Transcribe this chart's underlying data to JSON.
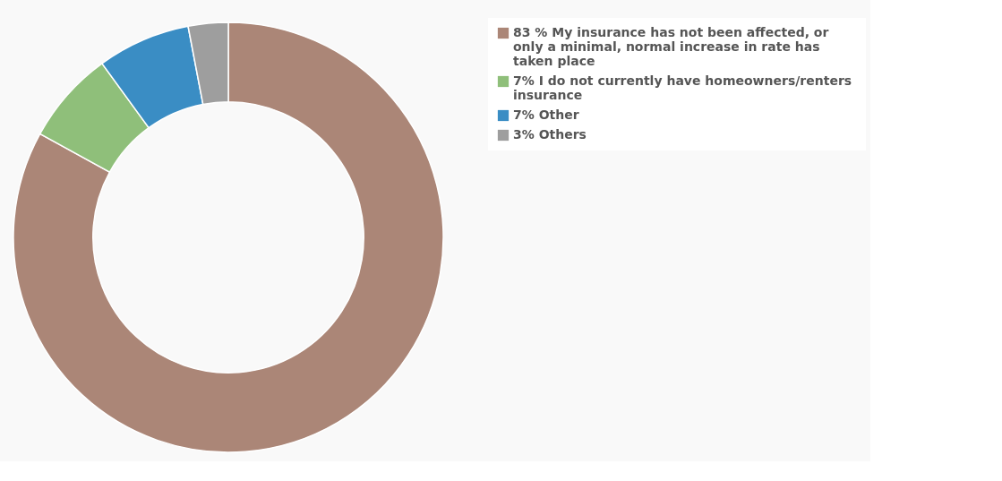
{
  "chart_data": {
    "type": "donut",
    "categories": [
      "My insurance has not been affected, or only a minimal, normal increase in rate has taken place",
      "I do not currently have homeowners/renters insurance",
      "Other",
      "Others"
    ],
    "values": [
      83,
      7,
      7,
      3
    ],
    "value_labels": [
      "83 %",
      "7%",
      "7%",
      "3%"
    ],
    "colors": [
      "#ab8677",
      "#8fbf7a",
      "#3a8dc4",
      "#9e9e9e"
    ],
    "legend": "top right"
  }
}
